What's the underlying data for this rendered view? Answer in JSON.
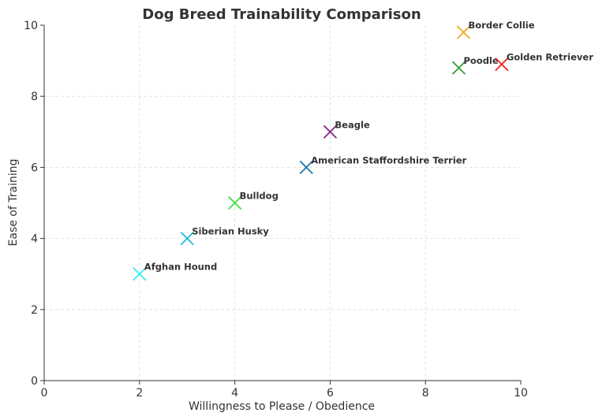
{
  "chart_data": {
    "type": "scatter",
    "title": "Dog Breed Trainability Comparison",
    "xlabel": "Willingness to Please / Obedience",
    "ylabel": "Ease of Training",
    "xlim": [
      0,
      10
    ],
    "ylim": [
      0,
      10
    ],
    "xticks": [
      0,
      2,
      4,
      6,
      8,
      10
    ],
    "yticks": [
      0,
      2,
      4,
      6,
      8,
      10
    ],
    "grid": true,
    "marker": "x",
    "points": [
      {
        "label": "Afghan Hound",
        "x": 2,
        "y": 3,
        "color": "#33eeee"
      },
      {
        "label": "Siberian Husky",
        "x": 3,
        "y": 4,
        "color": "#22bbdd"
      },
      {
        "label": "Bulldog",
        "x": 4,
        "y": 5,
        "color": "#44dd44"
      },
      {
        "label": "American Staffordshire Terrier",
        "x": 5.5,
        "y": 6,
        "color": "#2277aa"
      },
      {
        "label": "Beagle",
        "x": 6,
        "y": 7,
        "color": "#882288"
      },
      {
        "label": "Poodle",
        "x": 8.7,
        "y": 8.8,
        "color": "#33a033"
      },
      {
        "label": "Border Collie",
        "x": 8.8,
        "y": 9.8,
        "color": "#f5a623"
      },
      {
        "label": "Golden Retriever",
        "x": 9.6,
        "y": 8.9,
        "color": "#ee2222"
      }
    ]
  }
}
